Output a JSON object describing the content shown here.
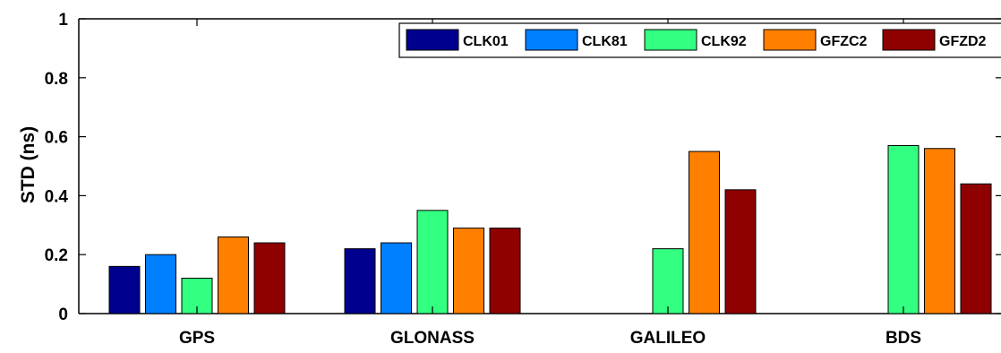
{
  "chart_data": {
    "type": "bar",
    "title": "",
    "xlabel": "",
    "ylabel": "STD (ns)",
    "categories": [
      "GPS",
      "GLONASS",
      "GALILEO",
      "BDS"
    ],
    "ylim": [
      0,
      1
    ],
    "yticks": [
      "0",
      "0.2",
      "0.4",
      "0.6",
      "0.8",
      "1"
    ],
    "grid": false,
    "legend_position": "top-right",
    "series": [
      {
        "name": "CLK01",
        "color": "#00008F",
        "values": [
          0.16,
          0.22,
          null,
          null
        ]
      },
      {
        "name": "CLK81",
        "color": "#0080FF",
        "values": [
          0.2,
          0.24,
          null,
          null
        ]
      },
      {
        "name": "CLK92",
        "color": "#33FF80",
        "values": [
          0.12,
          0.35,
          0.22,
          0.57
        ]
      },
      {
        "name": "GFZC2",
        "color": "#FF7F00",
        "values": [
          0.26,
          0.29,
          0.55,
          0.56
        ]
      },
      {
        "name": "GFZD2",
        "color": "#8F0000",
        "values": [
          0.24,
          0.29,
          0.42,
          0.44
        ]
      }
    ]
  }
}
